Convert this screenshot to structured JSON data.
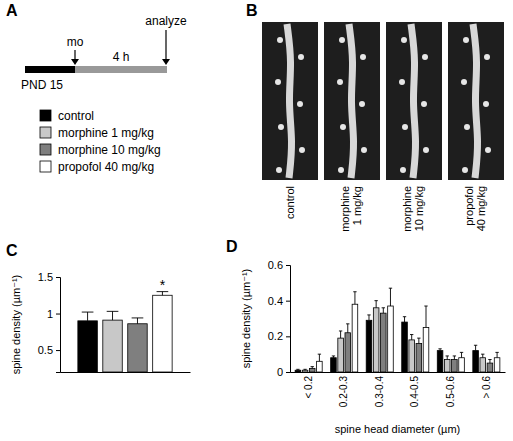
{
  "chart_data": [
    {
      "type": "bar",
      "y_label": "spine density (µm⁻¹)",
      "categories": [
        null
      ],
      "series": [
        {
          "name": "control",
          "color": "#000000",
          "values": [
            0.9
          ],
          "errors": [
            0.12
          ]
        },
        {
          "name": "morphine 1 mg/kg",
          "color": "#c8c8c8",
          "values": [
            0.91
          ],
          "errors": [
            0.12
          ]
        },
        {
          "name": "morphine 10 mg/kg",
          "color": "#7f7f7f",
          "values": [
            0.86
          ],
          "errors": [
            0.08
          ]
        },
        {
          "name": "propofol 40 mg/kg",
          "color": "#ffffff",
          "values": [
            1.25
          ],
          "errors": [
            0.05
          ]
        }
      ],
      "ylim": [
        0.2,
        1.5
      ],
      "yticks": [
        0.5,
        1,
        1.5
      ],
      "tick_labels": "y",
      "grid": false,
      "legend": "top",
      "annotations": [
        {
          "text": "*",
          "series": "propofol 40 mg/kg"
        }
      ]
    },
    {
      "type": "bar",
      "x_label": "spine head diameter (µm)",
      "y_label": "spine density (µm⁻¹)",
      "categories": [
        "< 0.2",
        "0.2-0.3",
        "0.3-0.4",
        "0.4-0.5",
        "0.5-0.6",
        "> 0.6"
      ],
      "series": [
        {
          "color": "#000000",
          "values": [
            0.01,
            0.08,
            0.29,
            0.28,
            0.12,
            0.12
          ],
          "errors": [
            0.005,
            0.01,
            0.03,
            0.03,
            0.01,
            0.03
          ]
        },
        {
          "color": "#c8c8c8",
          "values": [
            0.01,
            0.19,
            0.36,
            0.18,
            0.07,
            0.08
          ],
          "errors": [
            0.005,
            0.04,
            0.04,
            0.03,
            0.02,
            0.02
          ]
        },
        {
          "color": "#7f7f7f",
          "values": [
            0.02,
            0.22,
            0.33,
            0.16,
            0.07,
            0.05
          ],
          "errors": [
            0.01,
            0.05,
            0.03,
            0.03,
            0.02,
            0.02
          ]
        },
        {
          "color": "#ffffff",
          "values": [
            0.06,
            0.38,
            0.37,
            0.25,
            0.08,
            0.08
          ],
          "errors": [
            0.04,
            0.07,
            0.1,
            0.12,
            0.03,
            0.03
          ]
        }
      ],
      "ylim": [
        0,
        0.6
      ],
      "yticks": [
        0,
        0.2,
        0.4,
        0.6
      ],
      "grid": false
    }
  ],
  "panel_letters": [
    "A",
    "B",
    "C",
    "D"
  ],
  "panel_a": {
    "start_label": "PND 15",
    "event_label": "mo",
    "duration_label": "4 h",
    "end_label": "analyze"
  },
  "panel_b": {
    "images": [
      "control",
      "morphine 1 mg/kg",
      "morphine 10 mg/kg",
      "propofol 40 mg/kg"
    ]
  }
}
